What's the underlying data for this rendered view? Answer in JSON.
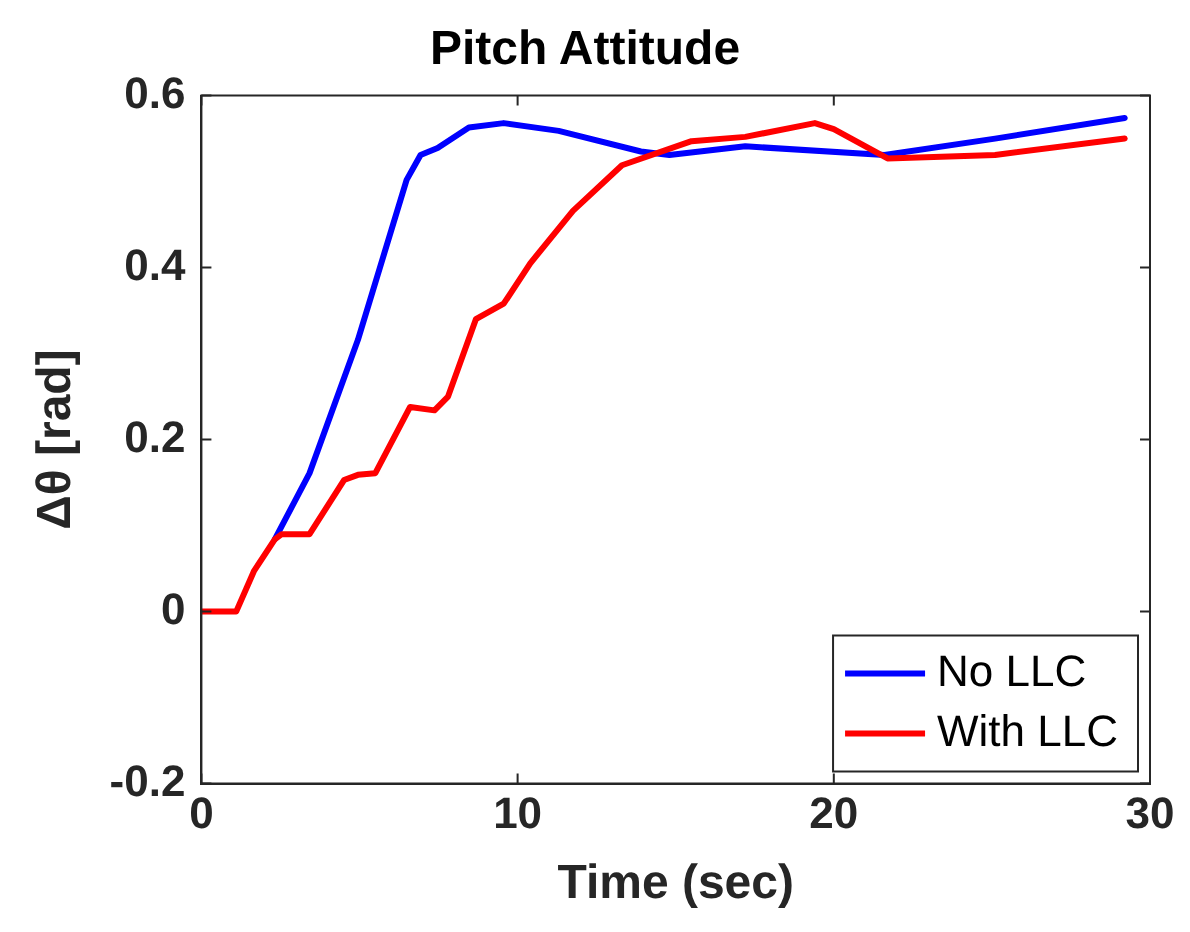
{
  "chart_data": {
    "type": "line",
    "title": "Pitch Attitude",
    "xlabel": "Time (sec)",
    "ylabel": "Δθ [rad]",
    "xlim": [
      0,
      30
    ],
    "xticks": [
      0,
      10,
      20,
      30
    ],
    "ylim": [
      -0.2,
      0.6
    ],
    "yticks": [
      -0.2,
      0,
      0.2,
      0.4,
      0.6
    ],
    "grid": false,
    "legend": "bottom right",
    "marker": "none",
    "line_style": "solid",
    "series": [
      {
        "name": "No LLC",
        "color": "#0000ff",
        "x": [
          2.32,
          3.42,
          4.95,
          6.49,
          6.93,
          7.47,
          8.46,
          9.56,
          11.3,
          13.9,
          14.8,
          17.2,
          21.6,
          25.1,
          29.2
        ],
        "values": [
          0.084,
          0.161,
          0.316,
          0.502,
          0.531,
          0.539,
          0.563,
          0.568,
          0.559,
          0.535,
          0.531,
          0.541,
          0.531,
          0.55,
          0.574
        ]
      },
      {
        "name": "With LLC",
        "color": "#ff0000",
        "x": [
          0,
          1.1,
          1.66,
          2.32,
          2.54,
          3.42,
          4.51,
          4.95,
          5.5,
          6.6,
          7.37,
          7.8,
          8.68,
          9.56,
          10.4,
          11.75,
          13.3,
          15.5,
          17.2,
          19.4,
          20.0,
          21.7,
          25.1,
          29.2
        ],
        "values": [
          0,
          0,
          0.047,
          0.084,
          0.09,
          0.09,
          0.153,
          0.159,
          0.161,
          0.238,
          0.234,
          0.25,
          0.34,
          0.358,
          0.405,
          0.466,
          0.519,
          0.547,
          0.552,
          0.568,
          0.561,
          0.527,
          0.531,
          0.55
        ]
      }
    ]
  }
}
